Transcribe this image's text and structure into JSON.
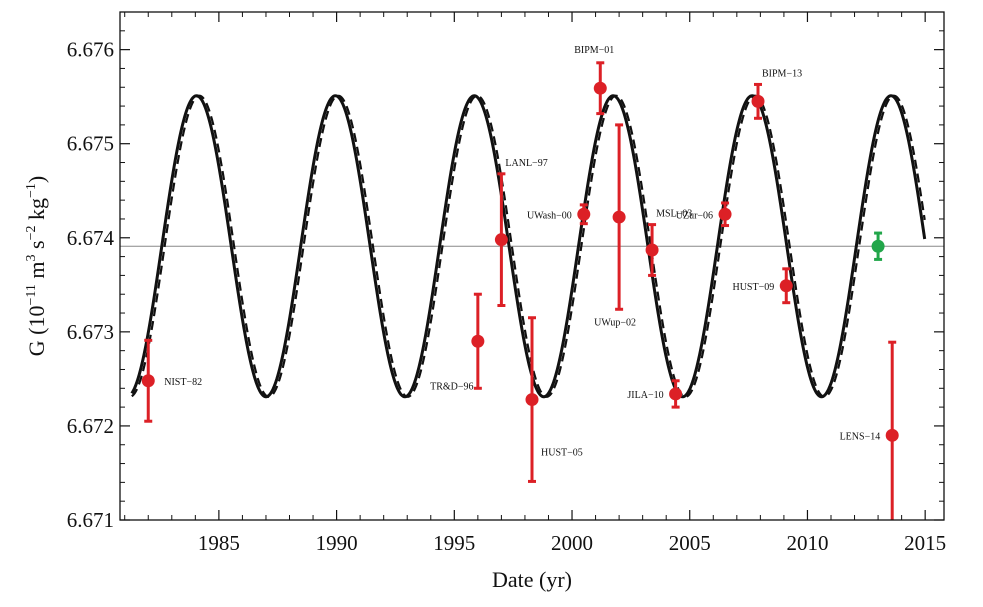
{
  "chart_data": {
    "type": "scatter",
    "title": "",
    "xlabel": "Date  (yr)",
    "ylabel": {
      "prefix": "G  (10",
      "exp1": "−11",
      "mid1": " m",
      "exp2": "3",
      "mid2": " s",
      "exp3": "−2",
      "mid3": " kg",
      "exp4": "−1",
      "suffix": ")"
    },
    "xlim": [
      1980.8,
      2015.8
    ],
    "ylim": [
      6.671,
      6.6764
    ],
    "xticks": [
      1985,
      1990,
      1995,
      2000,
      2005,
      2010,
      2015
    ],
    "xtick_labels": [
      "1985",
      "1990",
      "1995",
      "2000",
      "2005",
      "2010",
      "2015"
    ],
    "yticks": [
      6.671,
      6.672,
      6.673,
      6.674,
      6.675,
      6.676
    ],
    "ytick_labels": [
      "6.671",
      "6.672",
      "6.673",
      "6.674",
      "6.675",
      "6.676"
    ],
    "mean_line": 6.67391,
    "fit_curve": {
      "mean": 6.67391,
      "amplitude": 0.0016,
      "period_yr": 5.9,
      "peak_year": 1984.05,
      "x_range": [
        1981.3,
        2015
      ]
    },
    "colors": {
      "data": "#dc2026",
      "highlight": "#22a64a",
      "curve": "#111111",
      "mean_line": "#888888"
    },
    "points": [
      {
        "label": "NIST−82",
        "x": 1982.0,
        "y": 6.67248,
        "err": 0.00043,
        "color": "#dc2026",
        "label_side": "right",
        "label_pos": "right"
      },
      {
        "label": "TR&D−96",
        "x": 1996.0,
        "y": 6.6729,
        "err": 0.0005,
        "color": "#dc2026",
        "label_side": "below-left",
        "label_pos": "below-left"
      },
      {
        "label": "LANL−97",
        "x": 1997.0,
        "y": 6.67398,
        "err": 0.0007,
        "color": "#dc2026",
        "label_side": "above-right",
        "label_pos": "above-right"
      },
      {
        "label": "HUST−05",
        "x": 1998.3,
        "y": 6.67228,
        "err": 0.00087,
        "color": "#dc2026",
        "label_side": "below-right",
        "label_pos": "below-right"
      },
      {
        "label": "UWash−00",
        "x": 2000.5,
        "y": 6.67425,
        "err": 0.0001,
        "color": "#dc2026",
        "label_side": "left",
        "label_pos": "left"
      },
      {
        "label": "BIPM−01",
        "x": 2001.2,
        "y": 6.67559,
        "err": 0.00027,
        "color": "#dc2026",
        "label_side": "above",
        "label_pos": "above"
      },
      {
        "label": "UWup−02",
        "x": 2002.0,
        "y": 6.67422,
        "err": 0.00098,
        "color": "#dc2026",
        "label_side": "below",
        "label_pos": "below"
      },
      {
        "label": "MSL−03",
        "x": 2003.4,
        "y": 6.67387,
        "err": 0.00027,
        "color": "#dc2026",
        "label_side": "above-right",
        "label_pos": "above-right"
      },
      {
        "label": "JILA−10",
        "x": 2004.4,
        "y": 6.67234,
        "err": 0.00014,
        "color": "#dc2026",
        "label_side": "left",
        "label_pos": "left"
      },
      {
        "label": "UZur−06",
        "x": 2006.5,
        "y": 6.67425,
        "err": 0.00012,
        "color": "#dc2026",
        "label_side": "left",
        "label_pos": "left"
      },
      {
        "label": "BIPM−13",
        "x": 2007.9,
        "y": 6.67545,
        "err": 0.00018,
        "color": "#dc2026",
        "label_side": "above-right",
        "label_pos": "above-right"
      },
      {
        "label": "HUST−09",
        "x": 2009.1,
        "y": 6.67349,
        "err": 0.00018,
        "color": "#dc2026",
        "label_side": "left",
        "label_pos": "left"
      },
      {
        "label": "",
        "x": 2013.0,
        "y": 6.67391,
        "err": 0.00014,
        "color": "#22a64a",
        "label_side": "none",
        "label_pos": "none"
      },
      {
        "label": "LENS−14",
        "x": 2013.6,
        "y": 6.6719,
        "err": 0.00099,
        "color": "#dc2026",
        "label_side": "left",
        "label_pos": "left"
      }
    ]
  }
}
